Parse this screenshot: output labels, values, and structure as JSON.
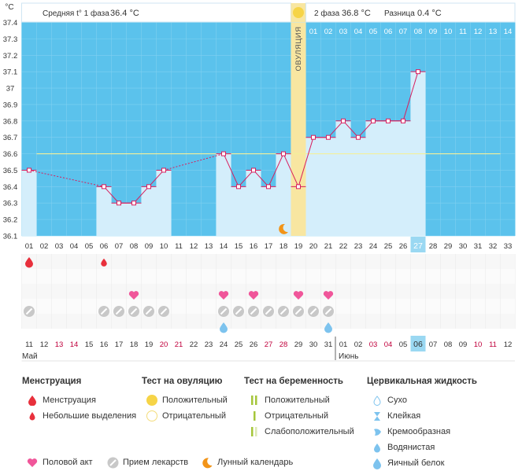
{
  "header": {
    "unit": "°C",
    "phase1_label": "Средняя t° 1 фаза",
    "phase1_value": "36.4 °C",
    "phase2_label": "2 фаза",
    "phase2_value": "36.8 °C",
    "diff_label": "Разница",
    "diff_value": "0.4 °C",
    "ovulation_label": "ОВУЛЯЦИЯ"
  },
  "chart_data": {
    "type": "line",
    "ylim": [
      36.1,
      37.4
    ],
    "yticks": [
      "36.1",
      "36.2",
      "36.3",
      "36.4",
      "36.5",
      "36.6",
      "36.7",
      "36.8",
      "36.9",
      "37",
      "37.1",
      "37.2",
      "37.3",
      "37.4"
    ],
    "cycle_days": [
      "01",
      "02",
      "03",
      "04",
      "05",
      "06",
      "07",
      "08",
      "09",
      "10",
      "11",
      "12",
      "13",
      "14",
      "15",
      "16",
      "17",
      "18",
      "19",
      "20",
      "21",
      "22",
      "23",
      "24",
      "25",
      "26",
      "27",
      "28",
      "29",
      "30",
      "31",
      "32",
      "33"
    ],
    "phase2_days": [
      "01",
      "02",
      "03",
      "04",
      "05",
      "06",
      "07",
      "08",
      "09",
      "10",
      "11",
      "12",
      "13",
      "14"
    ],
    "ovulation_day": 19,
    "cover_line": 36.6,
    "today_index": 27,
    "series": [
      {
        "points": [
          {
            "day": 1,
            "temp": 36.5
          },
          {
            "day": 6,
            "temp": 36.4
          },
          {
            "day": 7,
            "temp": 36.3
          },
          {
            "day": 8,
            "temp": 36.3
          },
          {
            "day": 9,
            "temp": 36.4
          },
          {
            "day": 10,
            "temp": 36.5
          },
          {
            "day": 14,
            "temp": 36.6
          },
          {
            "day": 15,
            "temp": 36.4
          },
          {
            "day": 16,
            "temp": 36.5
          },
          {
            "day": 17,
            "temp": 36.4
          },
          {
            "day": 18,
            "temp": 36.6
          },
          {
            "day": 19,
            "temp": 36.4
          },
          {
            "day": 20,
            "temp": 36.7
          },
          {
            "day": 21,
            "temp": 36.7
          },
          {
            "day": 22,
            "temp": 36.8
          },
          {
            "day": 23,
            "temp": 36.7
          },
          {
            "day": 24,
            "temp": 36.8
          },
          {
            "day": 25,
            "temp": 36.8
          },
          {
            "day": 26,
            "temp": 36.8
          },
          {
            "day": 27,
            "temp": 37.1
          }
        ],
        "gaps_dashed_after_days": [
          1,
          10
        ]
      }
    ],
    "menstruation_days": [
      1
    ],
    "spotting_days": [
      6
    ],
    "intercourse_days": [
      8,
      14,
      16,
      19,
      21
    ],
    "medication_days": [
      1,
      6,
      7,
      8,
      9,
      10,
      14,
      15,
      16,
      17,
      18,
      19,
      20,
      21
    ],
    "egg_white_days": [
      14,
      21
    ],
    "moon_day": 18,
    "dates": [
      {
        "d": "11",
        "c": "#333"
      },
      {
        "d": "12",
        "c": "#333"
      },
      {
        "d": "13",
        "c": "#c0003c"
      },
      {
        "d": "14",
        "c": "#c0003c"
      },
      {
        "d": "15",
        "c": "#333"
      },
      {
        "d": "16",
        "c": "#333"
      },
      {
        "d": "17",
        "c": "#333"
      },
      {
        "d": "18",
        "c": "#333"
      },
      {
        "d": "19",
        "c": "#333"
      },
      {
        "d": "20",
        "c": "#c0003c"
      },
      {
        "d": "21",
        "c": "#c0003c"
      },
      {
        "d": "22",
        "c": "#333"
      },
      {
        "d": "23",
        "c": "#333"
      },
      {
        "d": "24",
        "c": "#333"
      },
      {
        "d": "25",
        "c": "#333"
      },
      {
        "d": "26",
        "c": "#333"
      },
      {
        "d": "27",
        "c": "#c0003c"
      },
      {
        "d": "28",
        "c": "#c0003c"
      },
      {
        "d": "29",
        "c": "#333"
      },
      {
        "d": "30",
        "c": "#333"
      },
      {
        "d": "31",
        "c": "#333"
      },
      {
        "d": "01",
        "c": "#333"
      },
      {
        "d": "02",
        "c": "#333"
      },
      {
        "d": "03",
        "c": "#c0003c"
      },
      {
        "d": "04",
        "c": "#c0003c"
      },
      {
        "d": "05",
        "c": "#333"
      },
      {
        "d": "06",
        "c": "#333"
      },
      {
        "d": "07",
        "c": "#333"
      },
      {
        "d": "08",
        "c": "#333"
      },
      {
        "d": "09",
        "c": "#333"
      },
      {
        "d": "10",
        "c": "#c0003c"
      },
      {
        "d": "11",
        "c": "#c0003c"
      },
      {
        "d": "12",
        "c": "#333"
      }
    ],
    "month_start": "Май",
    "month_next": "Июнь",
    "month_next_index": 22
  },
  "colors": {
    "plot_bg": "#5bc2ec",
    "bar_fill": "#d4eefb",
    "line": "#d81d5d",
    "cover_line": "#f3ef9a",
    "ovulation": "#f8e6a1",
    "today": "#9ad8f2",
    "heart": "#f0569a",
    "menstruation": "#e8303c",
    "medication": "#c8c8c8",
    "drop_blue": "#7dc3ee",
    "moon": "#f29418"
  },
  "legend": {
    "menstruation_title": "Менструация",
    "menstruation_items": [
      "Менструация",
      "Небольшие выделения"
    ],
    "ovulation_title": "Тест на овуляцию",
    "ovulation_items": [
      "Положительный",
      "Отрицательный"
    ],
    "pregnancy_title": "Тест на беременность",
    "pregnancy_items": [
      "Положительный",
      "Отрицательный",
      "Слабоположительный"
    ],
    "fluid_title": "Цервикальная жидкость",
    "fluid_items": [
      "Сухо",
      "Клейкая",
      "Кремообразная",
      "Водянистая",
      "Яичный белок"
    ],
    "bottom_items": [
      "Половой акт",
      "Прием лекарств",
      "Лунный календарь"
    ]
  }
}
